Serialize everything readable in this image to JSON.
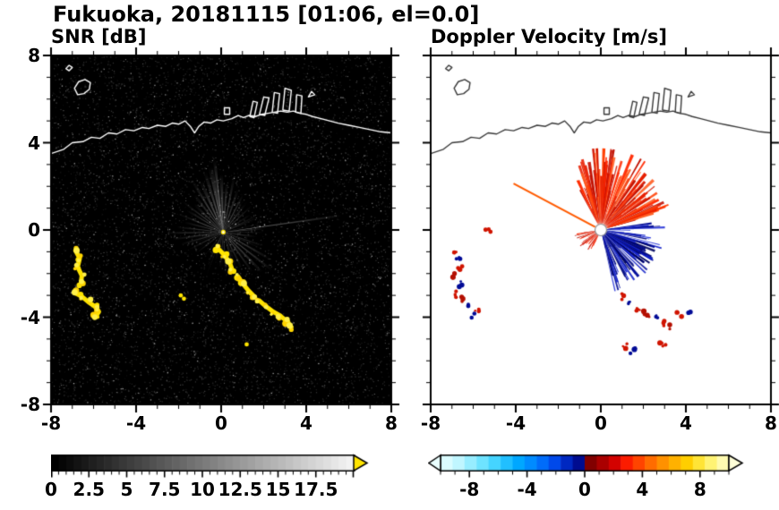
{
  "title": "Fukuoka, 20181115 [01:06, el=0.0]",
  "panels": {
    "snr": {
      "label": "SNR [dB]",
      "x_tick_labels": [
        "-8",
        "-4",
        "0",
        "4",
        "8"
      ],
      "y_tick_labels": [
        "8",
        "4",
        "0",
        "-4",
        "-8"
      ],
      "background": "#000000"
    },
    "velocity": {
      "label": "Doppler Velocity [m/s]",
      "x_tick_labels": [
        "-8",
        "-4",
        "0",
        "4",
        "8"
      ],
      "background": "#ffffff"
    }
  },
  "colorbars": {
    "snr": {
      "labels": [
        "0",
        "2.5",
        "5",
        "7.5",
        "10",
        "12.5",
        "15",
        "17.5"
      ],
      "values": [
        0,
        2.5,
        5,
        7.5,
        10,
        12.5,
        15,
        17.5
      ],
      "min": 0,
      "max": 20,
      "minor_step": 0.5,
      "major_step": 2.5,
      "start_color": "#000000",
      "end_color": "#f2f2f2",
      "overflow_arrow_color": "#ffe400"
    },
    "velocity": {
      "labels": [
        "-8",
        "-4",
        "0",
        "4",
        "8"
      ],
      "values": [
        -8,
        -4,
        0,
        4,
        8
      ],
      "min": -10,
      "max": 10,
      "minor_step": 1,
      "major_step": 4,
      "stops": [
        [
          0.0,
          "#e8ffff"
        ],
        [
          0.06,
          "#c2f6ff"
        ],
        [
          0.13,
          "#7ee8ff"
        ],
        [
          0.2,
          "#38d0ff"
        ],
        [
          0.27,
          "#00a8ff"
        ],
        [
          0.34,
          "#0078ff"
        ],
        [
          0.4,
          "#0046e8"
        ],
        [
          0.45,
          "#001eb4"
        ],
        [
          0.499,
          "#000078"
        ],
        [
          0.501,
          "#6e0000"
        ],
        [
          0.55,
          "#9e0000"
        ],
        [
          0.6,
          "#cf0000"
        ],
        [
          0.65,
          "#ff1e00"
        ],
        [
          0.72,
          "#ff6400"
        ],
        [
          0.79,
          "#ffa200"
        ],
        [
          0.86,
          "#ffd200"
        ],
        [
          0.92,
          "#fff05a"
        ],
        [
          1.0,
          "#ffffd0"
        ]
      ],
      "underflow_arrow_color": "#eaffff",
      "overflow_arrow_color": "#ffffd8"
    }
  },
  "map": {
    "coastline_main": [
      [
        -8,
        3.5
      ],
      [
        -7.4,
        3.7
      ],
      [
        -7.0,
        4.0
      ],
      [
        -6.5,
        4.05
      ],
      [
        -6.1,
        4.25
      ],
      [
        -5.7,
        4.2
      ],
      [
        -5.3,
        4.45
      ],
      [
        -4.9,
        4.4
      ],
      [
        -4.5,
        4.6
      ],
      [
        -4.1,
        4.55
      ],
      [
        -3.7,
        4.7
      ],
      [
        -3.4,
        4.65
      ],
      [
        -3.0,
        4.8
      ],
      [
        -2.6,
        4.75
      ],
      [
        -2.3,
        4.9
      ],
      [
        -2.0,
        4.85
      ],
      [
        -1.7,
        5.0
      ],
      [
        -1.45,
        4.75
      ],
      [
        -1.25,
        4.45
      ],
      [
        -1.05,
        4.75
      ],
      [
        -0.8,
        4.95
      ],
      [
        -0.5,
        4.9
      ],
      [
        -0.2,
        5.05
      ],
      [
        0.1,
        5.0
      ],
      [
        0.5,
        5.1
      ],
      [
        0.8,
        5.25
      ],
      [
        1.05,
        5.15
      ],
      [
        1.3,
        5.25
      ],
      [
        1.6,
        5.2
      ],
      [
        1.9,
        5.3
      ],
      [
        2.2,
        5.35
      ],
      [
        2.5,
        5.4
      ],
      [
        2.8,
        5.45
      ],
      [
        3.1,
        5.4
      ],
      [
        3.4,
        5.45
      ],
      [
        3.7,
        5.35
      ],
      [
        4.0,
        5.3
      ],
      [
        4.3,
        5.2
      ],
      [
        4.7,
        5.1
      ],
      [
        5.1,
        5.0
      ],
      [
        5.5,
        4.9
      ],
      [
        6.0,
        4.8
      ],
      [
        6.5,
        4.7
      ],
      [
        7.0,
        4.6
      ],
      [
        7.5,
        4.5
      ],
      [
        8,
        4.45
      ]
    ],
    "island": [
      [
        -6.75,
        6.2
      ],
      [
        -6.9,
        6.5
      ],
      [
        -6.7,
        6.8
      ],
      [
        -6.4,
        6.9
      ],
      [
        -6.15,
        6.75
      ],
      [
        -6.2,
        6.45
      ],
      [
        -6.45,
        6.25
      ]
    ],
    "islet": [
      [
        -7.3,
        7.4
      ],
      [
        -7.15,
        7.55
      ],
      [
        -7.0,
        7.45
      ],
      [
        -7.15,
        7.3
      ]
    ],
    "shore_box": [
      [
        0.15,
        5.3
      ],
      [
        0.15,
        5.6
      ],
      [
        0.4,
        5.6
      ],
      [
        0.4,
        5.3
      ]
    ],
    "piers": [
      [
        [
          1.35,
          5.2
        ],
        [
          1.5,
          5.9
        ],
        [
          1.7,
          5.85
        ],
        [
          1.55,
          5.15
        ]
      ],
      [
        [
          1.8,
          5.3
        ],
        [
          2.0,
          6.1
        ],
        [
          2.25,
          6.05
        ],
        [
          2.05,
          5.25
        ]
      ],
      [
        [
          2.4,
          5.4
        ],
        [
          2.5,
          6.3
        ],
        [
          2.75,
          6.25
        ],
        [
          2.65,
          5.35
        ]
      ],
      [
        [
          2.9,
          5.5
        ],
        [
          3.0,
          6.5
        ],
        [
          3.3,
          6.4
        ],
        [
          3.2,
          5.45
        ]
      ],
      [
        [
          3.5,
          5.4
        ],
        [
          3.55,
          6.2
        ],
        [
          3.8,
          6.15
        ],
        [
          3.75,
          5.35
        ]
      ],
      [
        [
          4.1,
          6.1
        ],
        [
          4.25,
          6.35
        ],
        [
          4.4,
          6.2
        ]
      ]
    ]
  },
  "chart_data": [
    {
      "type": "heatmap",
      "panel": "snr",
      "title": "SNR [dB]",
      "xlabel": "",
      "ylabel": "",
      "xlim": [
        -8,
        8
      ],
      "ylim": [
        -8,
        8
      ],
      "x_ticks": [
        -8,
        -4,
        0,
        4,
        8
      ],
      "y_ticks": [
        -8,
        -4,
        0,
        4,
        8
      ],
      "colorbar_ticks": [
        0,
        2.5,
        5,
        7.5,
        10,
        12.5,
        15,
        17.5
      ],
      "colorbar_range": [
        0,
        20
      ],
      "colormap": "black-to-white grayscale with yellow overflow arrow",
      "description": "Radar PPI of signal-to-noise ratio: dark speckle background, radial beams of enhanced SNR emanating from the radar at the origin, bright yellow (high SNR) arc-shaped echoes west-southwest of the radar and in a curved chain from the origin toward (3,-4.5); coastline drawn in white along the top.",
      "radar_origin": [
        0.1,
        -0.1
      ],
      "beams": [
        [
          97,
          3.4,
          1.2,
          0.65
        ],
        [
          101,
          3.1,
          2.2,
          0.5
        ],
        [
          92,
          2.7,
          1.8,
          0.5
        ],
        [
          107,
          2.9,
          1.6,
          0.45
        ],
        [
          114,
          2.6,
          2.0,
          0.4
        ],
        [
          121,
          2.8,
          1.4,
          0.4
        ],
        [
          128,
          2.2,
          1.8,
          0.35
        ],
        [
          136,
          1.9,
          1.6,
          0.3
        ],
        [
          86,
          2.3,
          1.7,
          0.45
        ],
        [
          79,
          2.6,
          1.4,
          0.4
        ],
        [
          71,
          2.1,
          1.8,
          0.35
        ],
        [
          62,
          1.9,
          1.6,
          0.3
        ],
        [
          52,
          1.6,
          1.8,
          0.28
        ],
        [
          43,
          1.8,
          1.3,
          0.28
        ],
        [
          33,
          1.5,
          1.5,
          0.25
        ],
        [
          23,
          1.7,
          1.2,
          0.25
        ],
        [
          8,
          5.6,
          0.5,
          0.55
        ],
        [
          5,
          2.0,
          1.2,
          0.3
        ],
        [
          352,
          1.6,
          1.4,
          0.25
        ],
        [
          341,
          2.0,
          1.3,
          0.3
        ],
        [
          330,
          2.5,
          1.4,
          0.38
        ],
        [
          322,
          2.9,
          1.2,
          0.42
        ],
        [
          314,
          2.6,
          1.5,
          0.4
        ],
        [
          306,
          2.3,
          1.4,
          0.35
        ],
        [
          297,
          1.9,
          1.6,
          0.3
        ],
        [
          286,
          1.7,
          1.5,
          0.28
        ],
        [
          274,
          2.0,
          1.3,
          0.3
        ],
        [
          265,
          1.7,
          1.5,
          0.28
        ],
        [
          255,
          1.4,
          1.6,
          0.22
        ],
        [
          244,
          1.6,
          1.4,
          0.24
        ],
        [
          232,
          1.3,
          1.5,
          0.2
        ],
        [
          218,
          1.5,
          1.4,
          0.22
        ],
        [
          207,
          1.8,
          1.3,
          0.26
        ],
        [
          196,
          2.1,
          1.3,
          0.3
        ],
        [
          188,
          2.4,
          1.2,
          0.32
        ],
        [
          181,
          2.7,
          1.1,
          0.34
        ],
        [
          174,
          2.2,
          1.3,
          0.3
        ],
        [
          166,
          1.9,
          1.4,
          0.28
        ],
        [
          158,
          2.3,
          1.2,
          0.3
        ],
        [
          149,
          2.0,
          1.4,
          0.28
        ],
        [
          143,
          2.4,
          1.1,
          0.3
        ]
      ],
      "echo_chains": [
        [
          [
            -6.85,
            -0.95
          ],
          [
            -6.65,
            -1.3
          ],
          [
            -6.75,
            -1.7
          ],
          [
            -6.55,
            -2.1
          ],
          [
            -6.6,
            -2.45
          ]
        ],
        [
          [
            -6.85,
            -2.9
          ],
          [
            -6.55,
            -3.05
          ],
          [
            -6.25,
            -3.3
          ],
          [
            -5.95,
            -3.5
          ],
          [
            -5.75,
            -3.75
          ],
          [
            -5.9,
            -3.95
          ]
        ],
        [
          [
            -0.15,
            -0.85
          ],
          [
            0.15,
            -1.15
          ],
          [
            0.4,
            -1.5
          ],
          [
            0.55,
            -1.9
          ]
        ],
        [
          [
            0.8,
            -2.15
          ],
          [
            1.05,
            -2.5
          ],
          [
            1.3,
            -2.8
          ],
          [
            1.55,
            -3.05
          ]
        ],
        [
          [
            1.8,
            -3.25
          ],
          [
            2.1,
            -3.5
          ],
          [
            2.45,
            -3.75
          ],
          [
            2.8,
            -3.95
          ],
          [
            3.1,
            -4.2
          ],
          [
            3.3,
            -4.45
          ]
        ]
      ],
      "echo_points": [
        [
          -1.9,
          -3.0
        ],
        [
          -1.75,
          -3.15
        ],
        [
          1.2,
          -5.25
        ]
      ]
    },
    {
      "type": "heatmap",
      "panel": "velocity",
      "title": "Doppler Velocity [m/s]",
      "xlabel": "",
      "ylabel": "",
      "xlim": [
        -8,
        8
      ],
      "ylim": [
        -8,
        8
      ],
      "x_ticks": [
        -8,
        -4,
        0,
        4,
        8
      ],
      "y_ticks": [
        -8,
        -4,
        0,
        4,
        8
      ],
      "colorbar_ticks": [
        -8,
        -4,
        0,
        4,
        8
      ],
      "colorbar_range": [
        -10,
        10
      ],
      "colormap": "cyan-blue for negative velocities to red-orange-yellow for positive, darkest near zero",
      "description": "Radar PPI of Doppler velocity on white background: ragged fan of positive (red/orange) velocities north and northeast of the radar, negative (dark blue) velocities east-southeast of the radar, mixed small red/blue echoes west-southwest and south of the radar, white dot at the radar origin; coastline drawn in dark gray along the top.",
      "radar_origin": [
        0,
        0
      ],
      "fans": [
        {
          "name": "outbound-red",
          "az_deg": [
            15,
            118
          ],
          "r": [
            0.5,
            3.4
          ],
          "n": 175,
          "colors": [
            "#ff2800",
            "#e81e00",
            "#d01400",
            "#ff5a1e",
            "#c00f00",
            "#ff3c00"
          ]
        },
        {
          "name": "inbound-blue",
          "az_deg": [
            -78,
            8
          ],
          "r": [
            0.3,
            3.0
          ],
          "n": 140,
          "colors": [
            "#000a96",
            "#0f1ec8",
            "#000573",
            "#1e2dd7",
            "#00055f"
          ]
        },
        {
          "name": "outbound-red-sw",
          "az_deg": [
            186,
            248
          ],
          "r": [
            0.25,
            1.25
          ],
          "n": 45,
          "colors": [
            "#d01400",
            "#b40f00",
            "#ff2800"
          ]
        }
      ],
      "rays": [
        {
          "az_deg": 152,
          "len": 4.6,
          "color": "#ff5a00",
          "width": 2
        }
      ],
      "specks": [
        [
          -6.9,
          -1.0,
          "#d01400"
        ],
        [
          -6.72,
          -1.35,
          "#000a96"
        ],
        [
          -6.6,
          -1.72,
          "#d01400"
        ],
        [
          -6.82,
          -2.1,
          "#b40f00"
        ],
        [
          -6.55,
          -2.5,
          "#000a96"
        ],
        [
          -6.85,
          -2.95,
          "#d01400"
        ],
        [
          -6.5,
          -3.2,
          "#b40f00"
        ],
        [
          -6.12,
          -3.45,
          "#000a96"
        ],
        [
          -5.85,
          -3.7,
          "#d01400"
        ],
        [
          -5.95,
          -3.95,
          "#000a96"
        ],
        [
          -5.3,
          0.05,
          "#d01400"
        ],
        [
          0.95,
          -3.05,
          "#d01400"
        ],
        [
          1.3,
          -3.35,
          "#000a96"
        ],
        [
          1.7,
          -3.6,
          "#d01400"
        ],
        [
          2.15,
          -3.85,
          "#b40f00"
        ],
        [
          2.6,
          -4.05,
          "#000a96"
        ],
        [
          3.0,
          -4.25,
          "#d01400"
        ],
        [
          3.35,
          -4.45,
          "#b40f00"
        ],
        [
          3.7,
          -3.9,
          "#d01400"
        ],
        [
          4.1,
          -3.72,
          "#000a96"
        ],
        [
          1.15,
          -5.3,
          "#d01400"
        ],
        [
          1.5,
          -5.55,
          "#000a96"
        ],
        [
          2.9,
          -5.3,
          "#d01400"
        ]
      ]
    }
  ]
}
